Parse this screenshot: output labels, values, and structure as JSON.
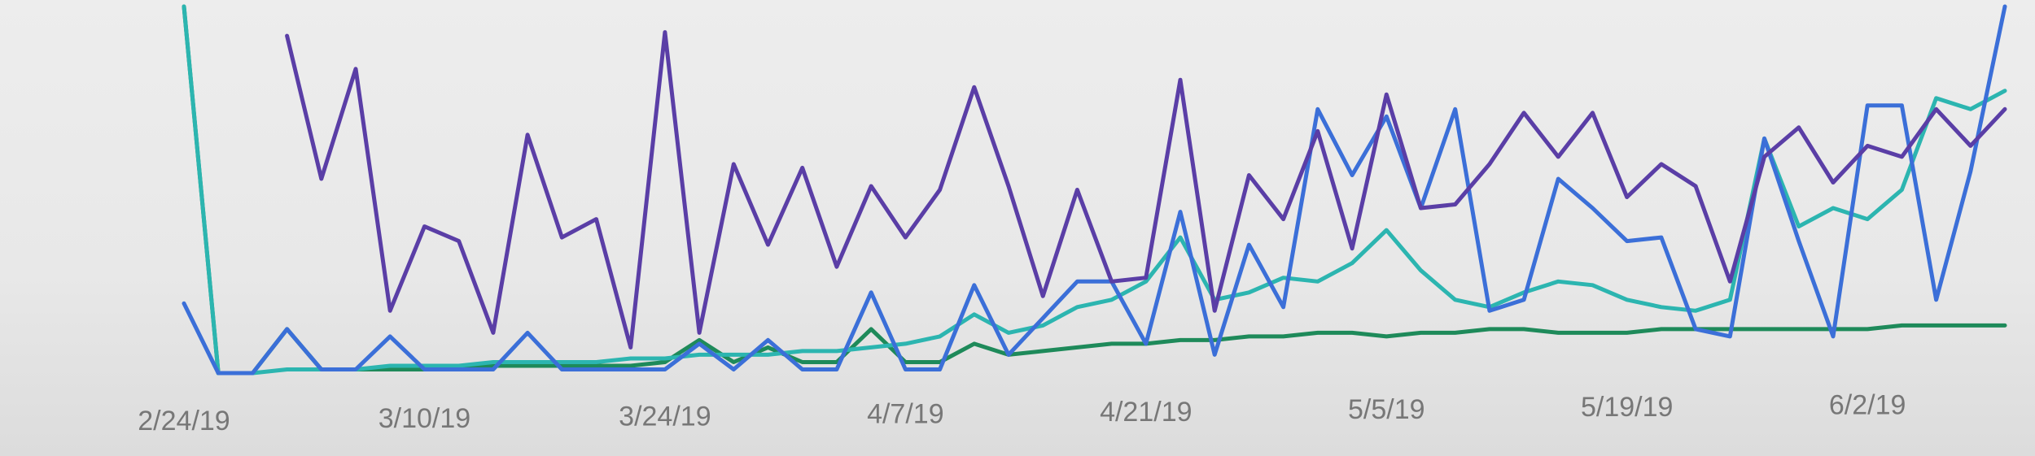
{
  "chart_data": {
    "type": "line",
    "categories": [
      "2/24/19",
      null,
      null,
      null,
      null,
      null,
      null,
      "3/10/19",
      null,
      null,
      null,
      null,
      null,
      null,
      "3/24/19",
      null,
      null,
      null,
      null,
      null,
      null,
      "4/7/19",
      null,
      null,
      null,
      null,
      null,
      null,
      "4/21/19",
      null,
      null,
      null,
      null,
      null,
      null,
      "5/5/19",
      null,
      null,
      null,
      null,
      null,
      null,
      "5/19/19",
      null,
      null,
      null,
      null,
      null,
      null,
      "6/2/19",
      null,
      null,
      null,
      null
    ],
    "series": [
      {
        "color": "#5a3ea6",
        "values": [
          null,
          null,
          null,
          92,
          53,
          83,
          17,
          40,
          36,
          11,
          65,
          37,
          42,
          7,
          93,
          11,
          57,
          35,
          56,
          29,
          51,
          37,
          50,
          78,
          51,
          21,
          50,
          25,
          26,
          80,
          17,
          54,
          42,
          66,
          34,
          76,
          45,
          46,
          57,
          71,
          59,
          71,
          48,
          57,
          51,
          25,
          59,
          67,
          52,
          62,
          59,
          72,
          62,
          72
        ]
      },
      {
        "color": "#3b6fd8",
        "values": [
          19,
          0,
          0,
          12,
          1,
          1,
          10,
          1,
          1,
          1,
          11,
          1,
          1,
          1,
          1,
          8,
          1,
          9,
          1,
          1,
          22,
          1,
          1,
          24,
          5,
          15,
          25,
          25,
          8,
          44,
          5,
          35,
          18,
          72,
          54,
          70,
          45,
          72,
          17,
          20,
          53,
          45,
          36,
          37,
          12,
          10,
          64,
          36,
          10,
          73,
          73,
          20,
          55,
          100
        ]
      },
      {
        "color": "#2cb5b0",
        "values": [
          100,
          0,
          0,
          1,
          1,
          1,
          2,
          2,
          2,
          3,
          3,
          3,
          3,
          4,
          4,
          5,
          5,
          5,
          6,
          6,
          7,
          8,
          10,
          16,
          11,
          13,
          18,
          20,
          25,
          37,
          20,
          22,
          26,
          25,
          30,
          39,
          28,
          20,
          18,
          22,
          25,
          24,
          20,
          18,
          17,
          20,
          64,
          40,
          45,
          42,
          50,
          75,
          72,
          77
        ]
      },
      {
        "color": "#1e8a5a",
        "values": [
          100,
          0,
          0,
          12,
          1,
          1,
          1,
          1,
          1,
          2,
          2,
          2,
          2,
          2,
          3,
          9,
          3,
          7,
          3,
          3,
          12,
          3,
          3,
          8,
          5,
          6,
          7,
          8,
          8,
          9,
          9,
          10,
          10,
          11,
          11,
          10,
          11,
          11,
          12,
          12,
          11,
          11,
          11,
          12,
          12,
          12,
          12,
          12,
          12,
          12,
          13,
          13,
          13,
          13
        ]
      }
    ],
    "ylim": [
      0,
      100
    ]
  }
}
